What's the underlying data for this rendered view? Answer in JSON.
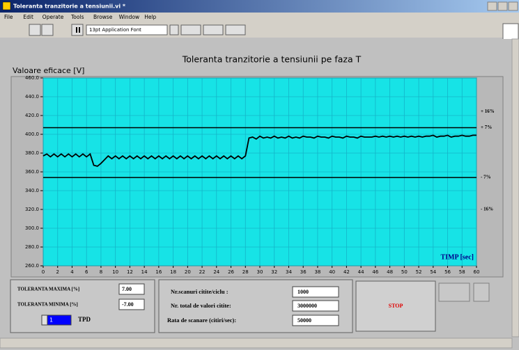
{
  "window": {
    "title": "Toleranta tranzitorie a tensiunii.vi *",
    "menu": [
      "File",
      "Edit",
      "Operate",
      "Tools",
      "Browse",
      "Window",
      "Help"
    ],
    "font_box": "13pt Application Font"
  },
  "chart_data": {
    "type": "line",
    "title": "Toleranta tranzitorie a tensiunii pe faza T",
    "y_label": "Valoare eficace [V]",
    "x_label": "TIMP [sec]",
    "background": "#17e3e6",
    "grid": true,
    "grid_color": "#14b4c8",
    "xlim": [
      0,
      60
    ],
    "ylim": [
      260,
      460
    ],
    "xticks": [
      0,
      2,
      4,
      6,
      8,
      10,
      12,
      14,
      16,
      18,
      20,
      22,
      24,
      26,
      28,
      30,
      32,
      34,
      36,
      38,
      40,
      42,
      44,
      46,
      48,
      50,
      52,
      54,
      56,
      58,
      60
    ],
    "yticks": [
      {
        "value": 260,
        "label": "260.0"
      },
      {
        "value": 280,
        "label": "280.0"
      },
      {
        "value": 300,
        "label": "300.0"
      },
      {
        "value": 320,
        "label": "320.0"
      },
      {
        "value": 340,
        "label": "340.0"
      },
      {
        "value": 360,
        "label": "360.0"
      },
      {
        "value": 380,
        "label": "380.0"
      },
      {
        "value": 400,
        "label": "400.0"
      },
      {
        "value": 420,
        "label": "420.0"
      },
      {
        "value": 440,
        "label": "440.0"
      },
      {
        "value": 460,
        "label": "460.0"
      }
    ],
    "annotations": [
      {
        "label": "+ 16%",
        "value": 424,
        "line": false
      },
      {
        "label": "+ 7%",
        "value": 407,
        "line": true
      },
      {
        "label": "- 7%",
        "value": 354,
        "line": true
      },
      {
        "label": "- 16%",
        "value": 320,
        "line": false
      }
    ],
    "x": [
      0,
      0.5,
      1,
      1.5,
      2,
      2.5,
      3,
      3.5,
      4,
      4.5,
      5,
      5.5,
      6,
      6.5,
      7,
      7.5,
      8,
      8.5,
      9,
      9.5,
      10,
      10.5,
      11,
      11.5,
      12,
      12.5,
      13,
      13.5,
      14,
      14.5,
      15,
      15.5,
      16,
      16.5,
      17,
      17.5,
      18,
      18.5,
      19,
      19.5,
      20,
      20.5,
      21,
      21.5,
      22,
      22.5,
      23,
      23.5,
      24,
      24.5,
      25,
      25.5,
      26,
      26.5,
      27,
      27.5,
      28,
      28.5,
      29,
      29.5,
      30,
      30.5,
      31,
      31.5,
      32,
      32.5,
      33,
      33.5,
      34,
      34.5,
      35,
      35.5,
      36,
      36.5,
      37,
      37.5,
      38,
      38.5,
      39,
      39.5,
      40,
      40.5,
      41,
      41.5,
      42,
      42.5,
      43,
      43.5,
      44,
      44.5,
      45,
      45.5,
      46,
      46.5,
      47,
      47.5,
      48,
      48.5,
      49,
      49.5,
      50,
      50.5,
      51,
      51.5,
      52,
      52.5,
      53,
      53.5,
      54,
      54.5,
      55,
      55.5,
      56,
      56.5,
      57,
      57.5,
      58,
      58.5,
      59,
      59.5,
      60
    ],
    "series": [
      {
        "name": "Faza T",
        "color": "#000000",
        "values": [
          377,
          379,
          376,
          379,
          376,
          379,
          376,
          379,
          376,
          379,
          376,
          379,
          376,
          379,
          367,
          366,
          369,
          373,
          377,
          374,
          377,
          374,
          377,
          374,
          377,
          374,
          377,
          374,
          377,
          374,
          377,
          374,
          377,
          374,
          377,
          374,
          377,
          374,
          377,
          374,
          377,
          374,
          377,
          374,
          377,
          374,
          377,
          374,
          377,
          374,
          377,
          374,
          377,
          374,
          377,
          374,
          377,
          396,
          397,
          395,
          398,
          396,
          397,
          396,
          398,
          396,
          397,
          396,
          398,
          396,
          397,
          396,
          398,
          397,
          397,
          396,
          398,
          397,
          397,
          396,
          398,
          397,
          397,
          396,
          398,
          397,
          397,
          396,
          398,
          397,
          397,
          397,
          398,
          397,
          398,
          397,
          398,
          397,
          398,
          397,
          398,
          397,
          398,
          397,
          398,
          397,
          398,
          398,
          399,
          397,
          398,
          398,
          399,
          397,
          398,
          398,
          399,
          398,
          398,
          399,
          399
        ]
      }
    ]
  },
  "panel": {
    "tol_max_label": "TOLERANTA MAXIMA [%]",
    "tol_max": "7.00",
    "tol_min_label": "TOLERANTA MINIMA [%]",
    "tol_min": "-7.00",
    "tpd_value": "1",
    "tpd_label": "TPD",
    "scans_label": "Nr.scanuri citite/ciclu :",
    "scans": "1000",
    "total_label": "Nr. total de valori citite:",
    "total": "3000000",
    "rate_label": "Rata de scanare (citiri/sec):",
    "rate": "50000",
    "stop": "STOP"
  }
}
